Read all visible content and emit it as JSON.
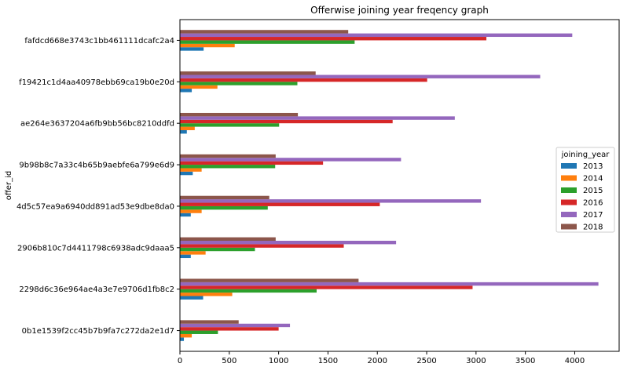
{
  "chart_data": {
    "type": "bar",
    "orientation": "horizontal",
    "title": "Offerwise joining year freqency graph",
    "ylabel": "offer_id",
    "xlabel": "",
    "xlim": [
      0,
      4450
    ],
    "xticks": [
      0,
      500,
      1000,
      1500,
      2000,
      2500,
      3000,
      3500,
      4000
    ],
    "grid": false,
    "categories": [
      "0b1e1539f2cc45b7b9fa7c272da2e1d7",
      "2298d6c36e964ae4a3e7e9706d1fb8c2",
      "2906b810c7d4411798c6938adc9daaa5",
      "4d5c57ea9a6940dd891ad53e9dbe8da0",
      "9b98b8c7a33c4b65b9aebfe6a799e6d9",
      "ae264e3637204a6fb9bb56bc8210ddfd",
      "f19421c1d4aa40978ebb69ca19b0e20d",
      "fafdcd668e3743c1bb461111dcafc2a4"
    ],
    "legend": {
      "title": "joining_year",
      "position": "center-right"
    },
    "series": [
      {
        "name": "2013",
        "color": "#1f77b4",
        "values": [
          40,
          235,
          110,
          110,
          130,
          70,
          120,
          240
        ]
      },
      {
        "name": "2014",
        "color": "#ff7f0e",
        "values": [
          120,
          530,
          260,
          220,
          220,
          150,
          380,
          555
        ]
      },
      {
        "name": "2015",
        "color": "#2ca02c",
        "values": [
          385,
          1385,
          760,
          890,
          965,
          1005,
          1190,
          1770
        ]
      },
      {
        "name": "2016",
        "color": "#d62728",
        "values": [
          1000,
          2965,
          1660,
          2025,
          1450,
          2155,
          2505,
          3105
        ]
      },
      {
        "name": "2017",
        "color": "#9467bd",
        "values": [
          1115,
          4240,
          2190,
          3050,
          2240,
          2785,
          3650,
          3975
        ]
      },
      {
        "name": "2018",
        "color": "#8c564b",
        "values": [
          595,
          1810,
          970,
          905,
          970,
          1195,
          1375,
          1705
        ]
      }
    ]
  }
}
